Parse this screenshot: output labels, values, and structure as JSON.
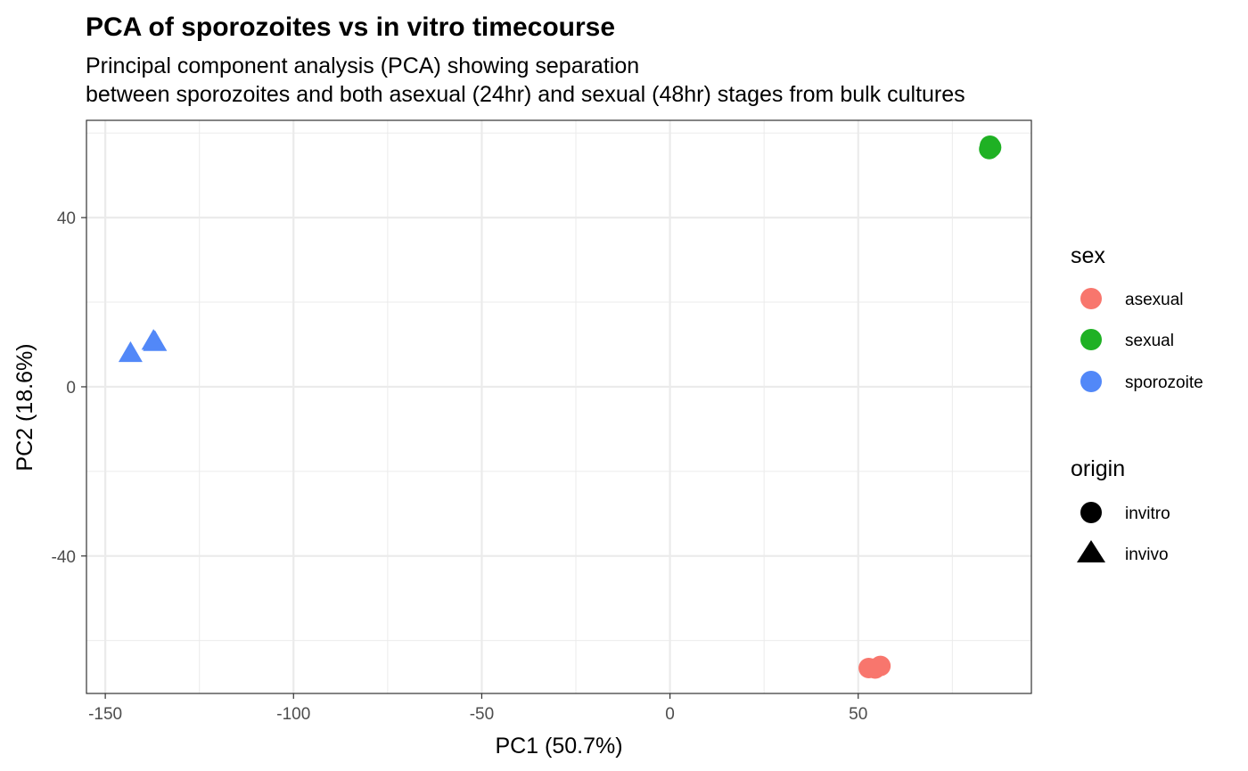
{
  "chart_data": {
    "type": "scatter",
    "title": "PCA of sporozoites vs in vitro timecourse",
    "subtitle_lines": [
      "Principal component analysis (PCA) showing separation",
      "between sporozoites and both asexual (24hr) and sexual (48hr) stages from bulk cultures"
    ],
    "xlabel": "PC1 (50.7%)",
    "ylabel": "PC2 (18.6%)",
    "xlim": [
      -155,
      96
    ],
    "ylim": [
      -72.5,
      63
    ],
    "x_ticks": [
      -150,
      -100,
      -50,
      0,
      50
    ],
    "x_tick_labels": [
      "-150",
      "-100",
      "-50",
      "0",
      "50"
    ],
    "y_ticks": [
      -40,
      0,
      40
    ],
    "y_tick_labels": [
      "-40",
      "0",
      "40"
    ],
    "grid": true,
    "legend_position": "right",
    "legends": {
      "sex": {
        "title": "sex",
        "items": [
          {
            "label": "asexual",
            "color": "#F8766D"
          },
          {
            "label": "sexual",
            "color": "#1FB124"
          },
          {
            "label": "sporozoite",
            "color": "#5288F8"
          }
        ]
      },
      "origin": {
        "title": "origin",
        "items": [
          {
            "label": "invitro",
            "shape": "circle"
          },
          {
            "label": "invivo",
            "shape": "triangle"
          }
        ]
      }
    },
    "points": [
      {
        "x": 85.0,
        "y": 57.0,
        "sex": "sexual",
        "origin": "invitro"
      },
      {
        "x": 84.8,
        "y": 56.2,
        "sex": "sexual",
        "origin": "invitro"
      },
      {
        "x": 85.3,
        "y": 56.6,
        "sex": "sexual",
        "origin": "invitro"
      },
      {
        "x": 52.8,
        "y": -66.5,
        "sex": "asexual",
        "origin": "invitro"
      },
      {
        "x": 54.5,
        "y": -66.6,
        "sex": "asexual",
        "origin": "invitro"
      },
      {
        "x": 55.9,
        "y": -66.0,
        "sex": "asexual",
        "origin": "invitro"
      },
      {
        "x": -143.3,
        "y": 7.6,
        "sex": "sporozoite",
        "origin": "invivo"
      },
      {
        "x": -137.2,
        "y": 10.5,
        "sex": "sporozoite",
        "origin": "invivo"
      },
      {
        "x": -136.8,
        "y": 10.2,
        "sex": "sporozoite",
        "origin": "invivo"
      }
    ]
  }
}
